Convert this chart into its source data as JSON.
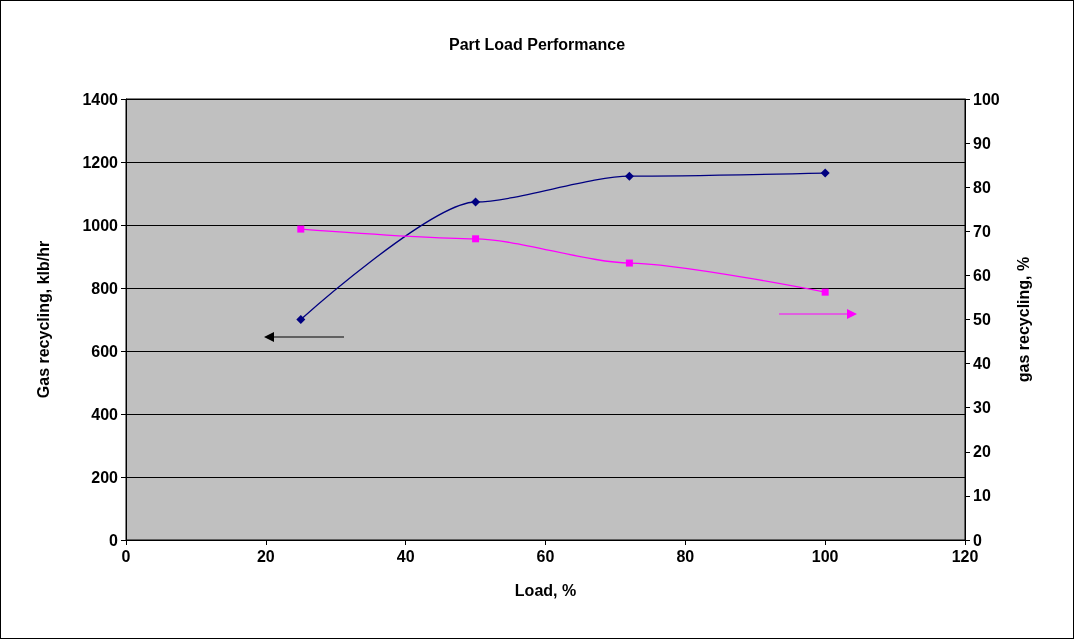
{
  "chart_data": {
    "type": "line",
    "title": "Part Load Performance",
    "xlabel": "Load, %",
    "ylabel": "Gas recycling, klb/hr",
    "y2label": "gas recycling, %",
    "x": [
      25,
      50,
      72,
      100
    ],
    "series": [
      {
        "color": "#000080",
        "values": [
          700,
          1073,
          1155,
          1165
        ],
        "marker": "diamond"
      },
      {
        "color": "#ff00ff",
        "values": [
          70.5,
          68.3,
          62.8,
          56.2
        ],
        "marker": "square",
        "axis": "y2"
      }
    ],
    "xlim": [
      0,
      120
    ],
    "xticks": [
      0,
      20,
      40,
      60,
      80,
      100,
      120
    ],
    "ylim": [
      0,
      1400
    ],
    "yticks": [
      0,
      200,
      400,
      600,
      800,
      1000,
      1200,
      1400
    ],
    "y2lim": [
      0,
      100
    ],
    "y2ticks": [
      0,
      10,
      20,
      30,
      40,
      50,
      60,
      70,
      80,
      90,
      100
    ],
    "grid": "y"
  }
}
